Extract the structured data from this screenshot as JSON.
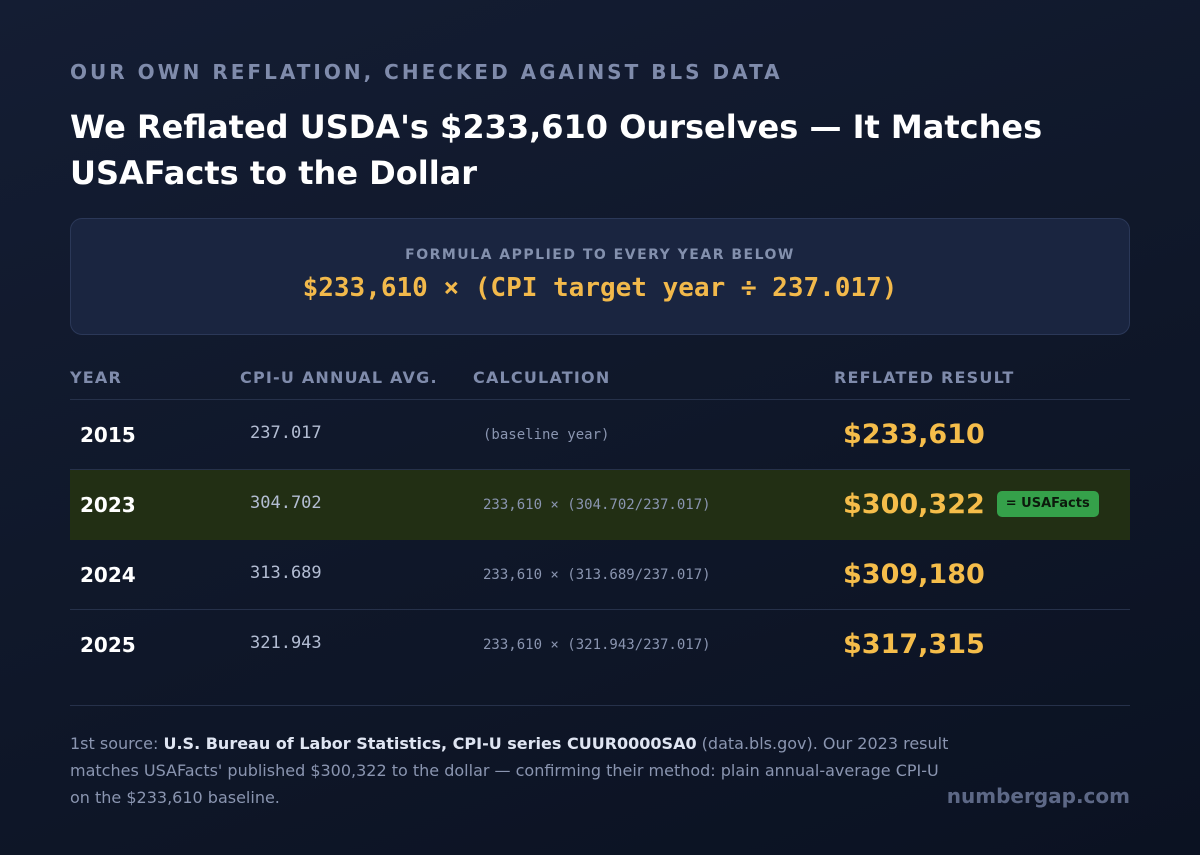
{
  "header": {
    "eyebrow": "OUR OWN REFLATION, CHECKED AGAINST BLS DATA",
    "title": "We Reflated USDA's $233,610 Ourselves — It Matches USAFacts to the Dollar"
  },
  "formula": {
    "label": "FORMULA APPLIED TO EVERY YEAR BELOW",
    "text": "$233,610 × (CPI target year ÷ 237.017)"
  },
  "table": {
    "columns": [
      "YEAR",
      "CPI-U ANNUAL AVG.",
      "CALCULATION",
      "REFLATED RESULT"
    ],
    "rows": [
      {
        "year": "2015",
        "cpi": "237.017",
        "calc": "(baseline year)",
        "result": "$233,610",
        "badge": ""
      },
      {
        "year": "2023",
        "cpi": "304.702",
        "calc": "233,610 × (304.702/237.017)",
        "result": "$300,322",
        "badge": "= USAFacts"
      },
      {
        "year": "2024",
        "cpi": "313.689",
        "calc": "233,610 × (313.689/237.017)",
        "result": "$309,180",
        "badge": ""
      },
      {
        "year": "2025",
        "cpi": "321.943",
        "calc": "233,610 × (321.943/237.017)",
        "result": "$317,315",
        "badge": ""
      }
    ]
  },
  "footer": {
    "prefix": "1st source: ",
    "source": "U.S. Bureau of Labor Statistics, CPI-U series CUUR0000SA0",
    "suffix": " (data.bls.gov). Our 2023 result matches USAFacts' published $300,322 to the dollar — confirming their method: plain annual-average CPI-U on the $233,610 baseline."
  },
  "brand": "numbergap.com",
  "colors": {
    "accent_gold": "#f5bd4a",
    "badge_green": "#35a14a",
    "highlight_row": "#222f14"
  }
}
